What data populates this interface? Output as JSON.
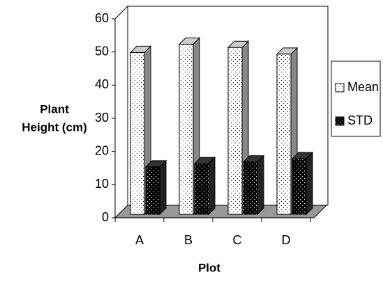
{
  "chart_data": {
    "type": "bar3d",
    "y_label": [
      "Plant",
      "Height (cm)"
    ],
    "x_label": "Plot",
    "categories": [
      "A",
      "B",
      "C",
      "D"
    ],
    "series": [
      {
        "name": "Mean",
        "color": "#ffffff",
        "values": [
          49,
          51.5,
          50.5,
          48.5
        ]
      },
      {
        "name": "STD",
        "color": "#000000",
        "values": [
          14.5,
          15.5,
          16,
          17
        ]
      }
    ],
    "ylim": [
      0,
      60
    ],
    "yticks": [
      0,
      10,
      20,
      30,
      40,
      50,
      60
    ],
    "legend": "right"
  }
}
